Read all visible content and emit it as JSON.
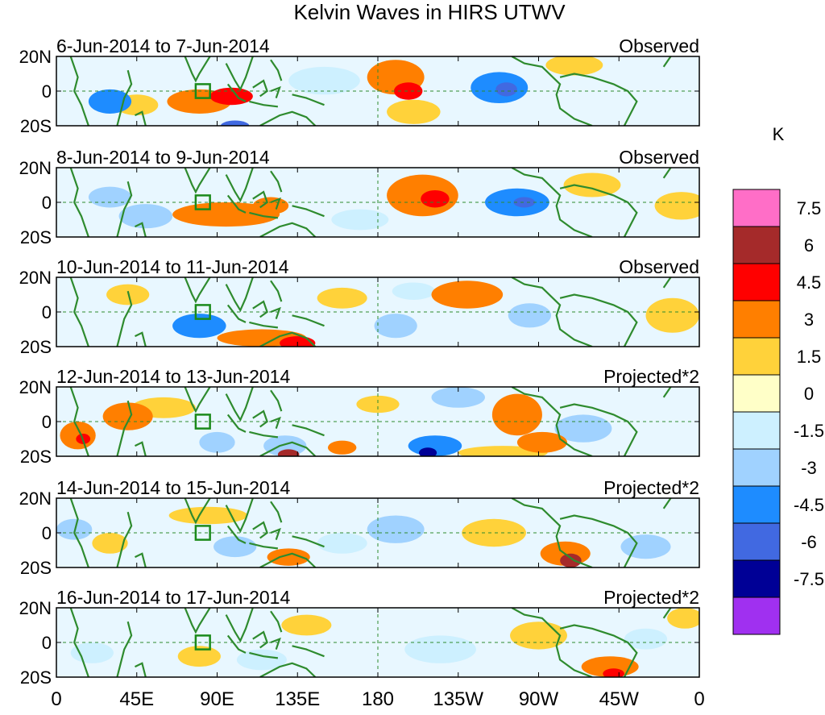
{
  "chart_data": {
    "type": "heatmap",
    "title": "Kelvin Waves in HIRS UTWV",
    "x_tick_labels": [
      "0",
      "45E",
      "90E",
      "135E",
      "180",
      "135W",
      "90W",
      "45W",
      "0"
    ],
    "x_tick_longitudes": [
      0,
      45,
      90,
      135,
      180,
      225,
      270,
      315,
      360
    ],
    "y_tick_labels": [
      "20N",
      "0",
      "20S"
    ],
    "y_tick_latitudes": [
      20,
      0,
      -20
    ],
    "lon_range": [
      0,
      360
    ],
    "lat_range": [
      -20,
      20
    ],
    "box_region": {
      "lon": [
        78,
        86
      ],
      "lat": [
        -4,
        4
      ]
    },
    "panels": [
      {
        "date_range": "6-Jun-2014 to 7-Jun-2014",
        "label": "Observed",
        "blobs": [
          {
            "lon": 190,
            "lat": 8,
            "rlon": 16,
            "rlat": 10,
            "value": 3.5
          },
          {
            "lon": 197,
            "lat": 0,
            "rlon": 8,
            "rlat": 5,
            "value": 5
          },
          {
            "lon": 98,
            "lat": -3,
            "rlon": 12,
            "rlat": 5,
            "value": 5
          },
          {
            "lon": 80,
            "lat": -6,
            "rlon": 18,
            "rlat": 7,
            "value": 3
          },
          {
            "lon": 200,
            "lat": -12,
            "rlon": 15,
            "rlat": 7,
            "value": 2
          },
          {
            "lon": 45,
            "lat": -8,
            "rlon": 12,
            "rlat": 6,
            "value": 1.5
          },
          {
            "lon": 248,
            "lat": 2,
            "rlon": 16,
            "rlat": 9,
            "value": -4
          },
          {
            "lon": 252,
            "lat": 1,
            "rlon": 6,
            "rlat": 4,
            "value": -6
          },
          {
            "lon": 30,
            "lat": -6,
            "rlon": 12,
            "rlat": 7,
            "value": -4
          },
          {
            "lon": 150,
            "lat": 6,
            "rlon": 20,
            "rlat": 8,
            "value": -1.5
          },
          {
            "lon": 290,
            "lat": 15,
            "rlon": 16,
            "rlat": 6,
            "value": 1.5
          },
          {
            "lon": 100,
            "lat": -20,
            "rlon": 8,
            "rlat": 3,
            "value": -6
          }
        ]
      },
      {
        "date_range": "8-Jun-2014 to 9-Jun-2014",
        "label": "Observed",
        "blobs": [
          {
            "lon": 205,
            "lat": 4,
            "rlon": 20,
            "rlat": 12,
            "value": 3.5
          },
          {
            "lon": 212,
            "lat": 2,
            "rlon": 8,
            "rlat": 5,
            "value": 5
          },
          {
            "lon": 95,
            "lat": -7,
            "rlon": 30,
            "rlat": 7,
            "value": 3
          },
          {
            "lon": 120,
            "lat": -2,
            "rlon": 10,
            "rlat": 5,
            "value": 3.5
          },
          {
            "lon": 258,
            "lat": 0,
            "rlon": 18,
            "rlat": 8,
            "value": -4
          },
          {
            "lon": 262,
            "lat": 0,
            "rlon": 6,
            "rlat": 3,
            "value": -6
          },
          {
            "lon": 50,
            "lat": -8,
            "rlon": 15,
            "rlat": 7,
            "value": -3
          },
          {
            "lon": 30,
            "lat": 3,
            "rlon": 12,
            "rlat": 6,
            "value": -3
          },
          {
            "lon": 300,
            "lat": 10,
            "rlon": 16,
            "rlat": 7,
            "value": 1.5
          },
          {
            "lon": 350,
            "lat": -2,
            "rlon": 15,
            "rlat": 8,
            "value": 1.5
          },
          {
            "lon": 170,
            "lat": -10,
            "rlon": 16,
            "rlat": 6,
            "value": -1.5
          }
        ]
      },
      {
        "date_range": "10-Jun-2014 to 11-Jun-2014",
        "label": "Observed",
        "blobs": [
          {
            "lon": 230,
            "lat": 10,
            "rlon": 20,
            "rlat": 8,
            "value": 3
          },
          {
            "lon": 115,
            "lat": -15,
            "rlon": 25,
            "rlat": 5,
            "value": 3
          },
          {
            "lon": 135,
            "lat": -18,
            "rlon": 10,
            "rlat": 4,
            "value": 4.5
          },
          {
            "lon": 80,
            "lat": -8,
            "rlon": 15,
            "rlat": 7,
            "value": -4
          },
          {
            "lon": 190,
            "lat": -8,
            "rlon": 12,
            "rlat": 7,
            "value": -3
          },
          {
            "lon": 265,
            "lat": -2,
            "rlon": 12,
            "rlat": 7,
            "value": -3
          },
          {
            "lon": 345,
            "lat": -2,
            "rlon": 15,
            "rlat": 10,
            "value": 2
          },
          {
            "lon": 40,
            "lat": 10,
            "rlon": 12,
            "rlat": 6,
            "value": 1.5
          },
          {
            "lon": 160,
            "lat": 8,
            "rlon": 14,
            "rlat": 6,
            "value": 1.5
          },
          {
            "lon": 200,
            "lat": 12,
            "rlon": 12,
            "rlat": 5,
            "value": -1.5
          }
        ]
      },
      {
        "date_range": "12-Jun-2014 to 13-Jun-2014",
        "label": "Projected*2",
        "blobs": [
          {
            "lon": 12,
            "lat": -8,
            "rlon": 10,
            "rlat": 8,
            "value": 4
          },
          {
            "lon": 15,
            "lat": -10,
            "rlon": 4,
            "rlat": 3,
            "value": 5
          },
          {
            "lon": 40,
            "lat": 3,
            "rlon": 14,
            "rlat": 8,
            "value": 3
          },
          {
            "lon": 60,
            "lat": 8,
            "rlon": 18,
            "rlat": 6,
            "value": 2
          },
          {
            "lon": 258,
            "lat": 4,
            "rlon": 14,
            "rlat": 12,
            "value": 3
          },
          {
            "lon": 272,
            "lat": -12,
            "rlon": 14,
            "rlat": 6,
            "value": 3.5
          },
          {
            "lon": 250,
            "lat": -18,
            "rlon": 25,
            "rlat": 4,
            "value": 2
          },
          {
            "lon": 212,
            "lat": -14,
            "rlon": 15,
            "rlat": 6,
            "value": -4
          },
          {
            "lon": 208,
            "lat": -18,
            "rlon": 5,
            "rlat": 3,
            "value": -7.5
          },
          {
            "lon": 128,
            "lat": -14,
            "rlon": 12,
            "rlat": 6,
            "value": -3
          },
          {
            "lon": 130,
            "lat": -19,
            "rlon": 6,
            "rlat": 3,
            "value": 6
          },
          {
            "lon": 160,
            "lat": -15,
            "rlon": 8,
            "rlat": 4,
            "value": 3
          },
          {
            "lon": 225,
            "lat": 14,
            "rlon": 15,
            "rlat": 6,
            "value": -3
          },
          {
            "lon": 295,
            "lat": -4,
            "rlon": 16,
            "rlat": 8,
            "value": -3
          },
          {
            "lon": 90,
            "lat": -12,
            "rlon": 10,
            "rlat": 6,
            "value": -3
          },
          {
            "lon": 180,
            "lat": 10,
            "rlon": 12,
            "rlat": 5,
            "value": 1.5
          }
        ]
      },
      {
        "date_range": "14-Jun-2014 to 15-Jun-2014",
        "label": "Projected*2",
        "blobs": [
          {
            "lon": 285,
            "lat": -12,
            "rlon": 14,
            "rlat": 7,
            "value": 4
          },
          {
            "lon": 288,
            "lat": -16,
            "rlon": 6,
            "rlat": 4,
            "value": 6
          },
          {
            "lon": 130,
            "lat": -14,
            "rlon": 12,
            "rlat": 5,
            "value": 3
          },
          {
            "lon": 30,
            "lat": -6,
            "rlon": 10,
            "rlat": 6,
            "value": 2
          },
          {
            "lon": 85,
            "lat": 10,
            "rlon": 22,
            "rlat": 5,
            "value": 1.5
          },
          {
            "lon": 245,
            "lat": 0,
            "rlon": 18,
            "rlat": 8,
            "value": 1.5
          },
          {
            "lon": 190,
            "lat": 2,
            "rlon": 16,
            "rlat": 8,
            "value": -3
          },
          {
            "lon": 100,
            "lat": -8,
            "rlon": 12,
            "rlat": 6,
            "value": -3
          },
          {
            "lon": 330,
            "lat": -8,
            "rlon": 14,
            "rlat": 7,
            "value": -3
          },
          {
            "lon": 10,
            "lat": 2,
            "rlon": 10,
            "rlat": 6,
            "value": -3
          },
          {
            "lon": 160,
            "lat": -6,
            "rlon": 14,
            "rlat": 6,
            "value": -1.5
          }
        ]
      },
      {
        "date_range": "16-Jun-2014 to 17-Jun-2014",
        "label": "Projected*2",
        "blobs": [
          {
            "lon": 310,
            "lat": -14,
            "rlon": 16,
            "rlat": 6,
            "value": 3
          },
          {
            "lon": 312,
            "lat": -18,
            "rlon": 6,
            "rlat": 3,
            "value": 4.5
          },
          {
            "lon": 80,
            "lat": -8,
            "rlon": 12,
            "rlat": 6,
            "value": 2
          },
          {
            "lon": 140,
            "lat": 10,
            "rlon": 14,
            "rlat": 6,
            "value": 1.5
          },
          {
            "lon": 270,
            "lat": 4,
            "rlon": 16,
            "rlat": 8,
            "value": 1.5
          },
          {
            "lon": 352,
            "lat": 14,
            "rlon": 10,
            "rlat": 6,
            "value": 2
          },
          {
            "lon": 20,
            "lat": -6,
            "rlon": 12,
            "rlat": 6,
            "value": -1.5
          },
          {
            "lon": 115,
            "lat": -10,
            "rlon": 14,
            "rlat": 6,
            "value": -1.5
          },
          {
            "lon": 215,
            "lat": -4,
            "rlon": 20,
            "rlat": 8,
            "value": -1.5
          },
          {
            "lon": 330,
            "lat": 2,
            "rlon": 12,
            "rlat": 6,
            "value": -1.5
          }
        ]
      }
    ],
    "colorbar": {
      "unit": "K",
      "levels": [
        7.5,
        6,
        4.5,
        3,
        1.5,
        0,
        -1.5,
        -3,
        -4.5,
        -6,
        -7.5
      ],
      "level_labels": [
        "7.5",
        "6",
        "4.5",
        "3",
        "1.5",
        "0",
        "-1.5",
        "-3",
        "-4.5",
        "-6",
        "-7.5"
      ],
      "colors": [
        "#ff6ec7",
        "#a52a2a",
        "#ff0000",
        "#ff7f00",
        "#ffd23a",
        "#ffffc8",
        "#cdf0ff",
        "#a0d2ff",
        "#1e8cff",
        "#4169e1",
        "#000096",
        "#a030f0"
      ]
    },
    "colors": {
      "land_outline": "#2e8b2e",
      "equator_line": "#2e8b2e",
      "background_field": "#e8f7ff"
    }
  }
}
